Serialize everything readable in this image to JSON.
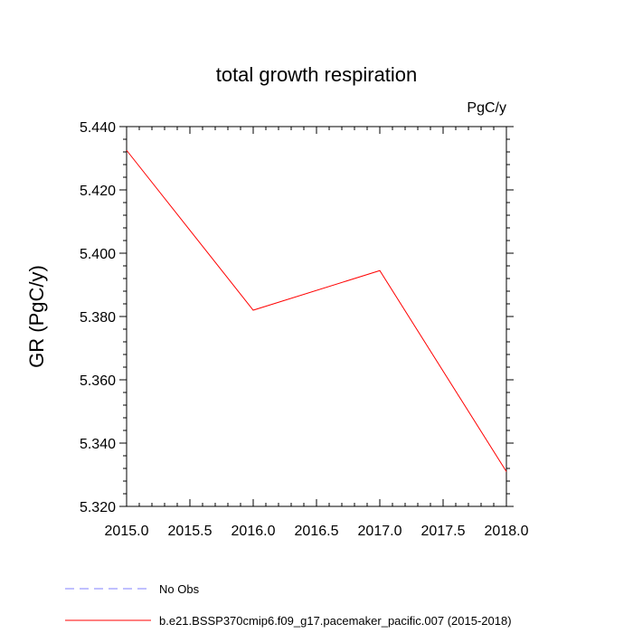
{
  "chart_data": {
    "type": "line",
    "title": "total growth respiration",
    "units_label": "PgC/y",
    "ylabel": "GR  (PgC/y)",
    "xlabel": "",
    "xlim": [
      2015.0,
      2018.0
    ],
    "ylim": [
      5.32,
      5.44
    ],
    "x_ticks": [
      2015.0,
      2015.5,
      2016.0,
      2016.5,
      2017.0,
      2017.5,
      2018.0
    ],
    "x_tick_labels": [
      "2015.0",
      "2015.5",
      "2016.0",
      "2016.5",
      "2017.0",
      "2017.5",
      "2018.0"
    ],
    "y_ticks": [
      5.32,
      5.34,
      5.36,
      5.38,
      5.4,
      5.42,
      5.44
    ],
    "y_tick_labels": [
      "5.320",
      "5.340",
      "5.360",
      "5.380",
      "5.400",
      "5.420",
      "5.440"
    ],
    "x_minor_step": 0.1,
    "y_minor_step": 0.004,
    "grid": false,
    "series": [
      {
        "name": "b.e21.BSSP370cmip6.f09_g17.pacemaker_pacific.007 (2015-2018)",
        "color": "#ff0000",
        "style": "solid",
        "x": [
          2015,
          2016,
          2017,
          2018
        ],
        "values": [
          5.4325,
          5.382,
          5.3945,
          5.331
        ]
      }
    ],
    "legend": [
      {
        "label": "No Obs",
        "color": "#8080ff",
        "style": "dashed"
      },
      {
        "label": "b.e21.BSSP370cmip6.f09_g17.pacemaker_pacific.007 (2015-2018)",
        "color": "#ff0000",
        "style": "solid"
      }
    ],
    "legend_position": "bottom-left"
  }
}
